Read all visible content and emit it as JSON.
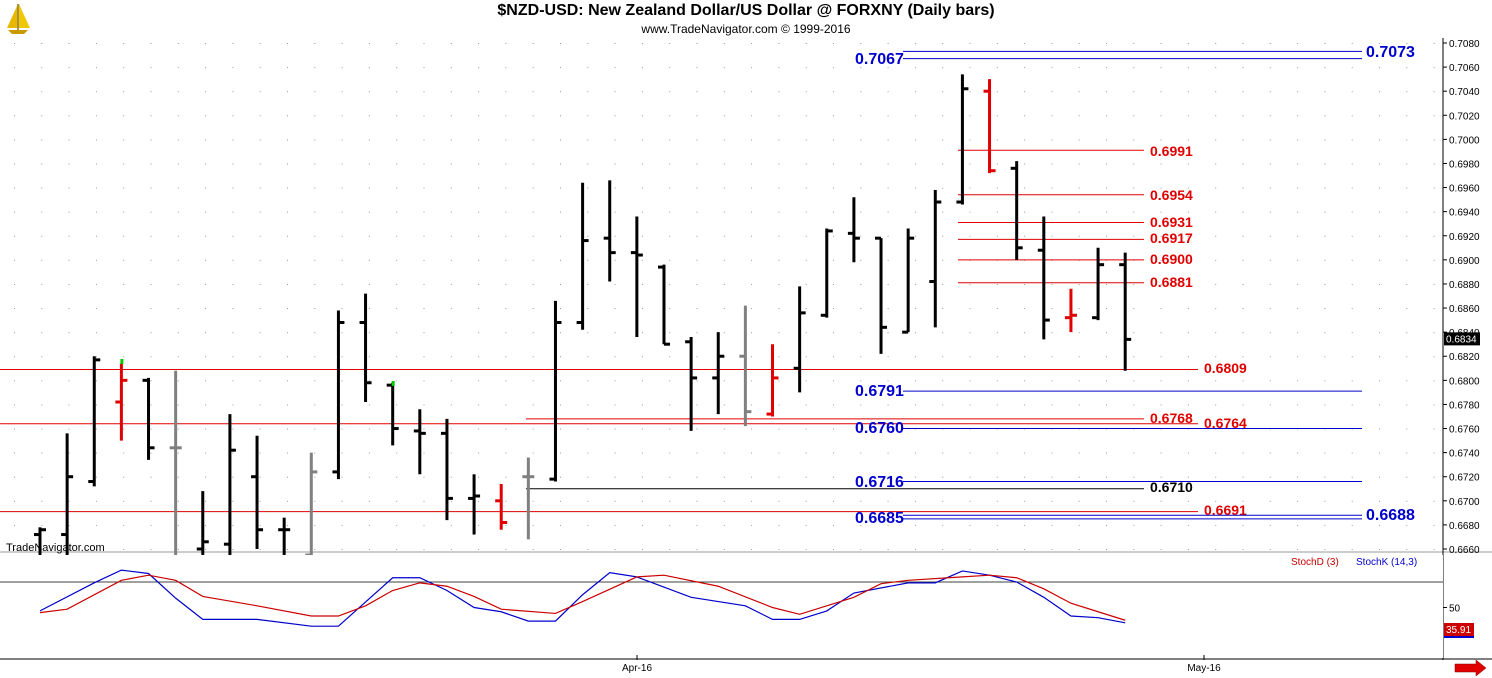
{
  "header": {
    "title": "$NZD-USD:  New Zealand Dollar/US Dollar @ FORXNY  (Daily bars)",
    "copyright": "www.TradeNavigator.com © 1999-2016",
    "watermark": "TradeNavigator.com",
    "logo_icon": "sailboat-logo-icon"
  },
  "colors": {
    "up_bar": "#000000",
    "down_bar": "#e00000",
    "neutral_bar": "#808080",
    "blue_level": "#0000cc",
    "red_level": "#e00000",
    "stochD": "#cc0000",
    "stochK": "#0000cc",
    "current_price_bg": "#000000",
    "stoch_value_bg": "#cc0000"
  },
  "chart_data": [
    {
      "type": "ohlc",
      "title": "$NZD-USD:  New Zealand Dollar/US Dollar @ FORXNY  (Daily bars)",
      "ylim": [
        0.6655,
        0.7085
      ],
      "y_ticks": [
        "0.7080",
        "0.7060",
        "0.7040",
        "0.7020",
        "0.7000",
        "0.6980",
        "0.6960",
        "0.6940",
        "0.6920",
        "0.6900",
        "0.6880",
        "0.6860",
        "0.6840",
        "0.6820",
        "0.6800",
        "0.6780",
        "0.6760",
        "0.6740",
        "0.6720",
        "0.6700",
        "0.6680",
        "0.6660"
      ],
      "x_labels": [
        "Apr-16",
        "May-16"
      ],
      "current_price": "0.6834",
      "grid": "dotted",
      "bars": [
        {
          "o": 0.6672,
          "h": 0.6678,
          "l": 0.6655,
          "c": 0.6676,
          "col": "black"
        },
        {
          "o": 0.6672,
          "h": 0.6756,
          "l": 0.6655,
          "c": 0.672,
          "col": "black"
        },
        {
          "o": 0.6716,
          "h": 0.682,
          "l": 0.6712,
          "c": 0.6817,
          "col": "black"
        },
        {
          "o": 0.6782,
          "h": 0.6814,
          "l": 0.675,
          "c": 0.68,
          "col": "red"
        },
        {
          "o": 0.68,
          "h": 0.6802,
          "l": 0.6734,
          "c": 0.6744,
          "col": "black"
        },
        {
          "o": 0.6744,
          "h": 0.6808,
          "l": 0.6655,
          "c": 0.6744,
          "col": "gray"
        },
        {
          "o": 0.666,
          "h": 0.6708,
          "l": 0.6655,
          "c": 0.6666,
          "col": "black"
        },
        {
          "o": 0.6664,
          "h": 0.6772,
          "l": 0.6655,
          "c": 0.6742,
          "col": "black"
        },
        {
          "o": 0.672,
          "h": 0.6754,
          "l": 0.666,
          "c": 0.6676,
          "col": "black"
        },
        {
          "o": 0.6676,
          "h": 0.6686,
          "l": 0.6655,
          "c": 0.6676,
          "col": "black"
        },
        {
          "o": 0.6655,
          "h": 0.674,
          "l": 0.6655,
          "c": 0.6724,
          "col": "gray"
        },
        {
          "o": 0.6724,
          "h": 0.6858,
          "l": 0.6718,
          "c": 0.6848,
          "col": "black"
        },
        {
          "o": 0.6848,
          "h": 0.6872,
          "l": 0.6782,
          "c": 0.6798,
          "col": "black"
        },
        {
          "o": 0.6796,
          "h": 0.6798,
          "l": 0.6746,
          "c": 0.676,
          "col": "black"
        },
        {
          "o": 0.6758,
          "h": 0.6776,
          "l": 0.6722,
          "c": 0.6756,
          "col": "black"
        },
        {
          "o": 0.6756,
          "h": 0.6768,
          "l": 0.6684,
          "c": 0.6702,
          "col": "black"
        },
        {
          "o": 0.6702,
          "h": 0.6722,
          "l": 0.6672,
          "c": 0.6704,
          "col": "black"
        },
        {
          "o": 0.67,
          "h": 0.6714,
          "l": 0.6676,
          "c": 0.6682,
          "col": "red"
        },
        {
          "o": 0.672,
          "h": 0.6736,
          "l": 0.6668,
          "c": 0.672,
          "col": "gray"
        },
        {
          "o": 0.6718,
          "h": 0.6866,
          "l": 0.6716,
          "c": 0.6848,
          "col": "black"
        },
        {
          "o": 0.6848,
          "h": 0.6964,
          "l": 0.6842,
          "c": 0.6916,
          "col": "black"
        },
        {
          "o": 0.6918,
          "h": 0.6966,
          "l": 0.6882,
          "c": 0.6906,
          "col": "black"
        },
        {
          "o": 0.6906,
          "h": 0.6936,
          "l": 0.6836,
          "c": 0.6904,
          "col": "black"
        },
        {
          "o": 0.6894,
          "h": 0.6896,
          "l": 0.683,
          "c": 0.683,
          "col": "black"
        },
        {
          "o": 0.6832,
          "h": 0.6836,
          "l": 0.6758,
          "c": 0.6802,
          "col": "black"
        },
        {
          "o": 0.6802,
          "h": 0.684,
          "l": 0.6772,
          "c": 0.682,
          "col": "black"
        },
        {
          "o": 0.682,
          "h": 0.6862,
          "l": 0.6762,
          "c": 0.6774,
          "col": "gray"
        },
        {
          "o": 0.6772,
          "h": 0.683,
          "l": 0.677,
          "c": 0.6802,
          "col": "red"
        },
        {
          "o": 0.681,
          "h": 0.6878,
          "l": 0.679,
          "c": 0.6856,
          "col": "black"
        },
        {
          "o": 0.6854,
          "h": 0.6926,
          "l": 0.6852,
          "c": 0.6924,
          "col": "black"
        },
        {
          "o": 0.6922,
          "h": 0.6952,
          "l": 0.6898,
          "c": 0.6918,
          "col": "black"
        },
        {
          "o": 0.6918,
          "h": 0.6918,
          "l": 0.6822,
          "c": 0.6844,
          "col": "black"
        },
        {
          "o": 0.684,
          "h": 0.6926,
          "l": 0.684,
          "c": 0.6918,
          "col": "black"
        },
        {
          "o": 0.6882,
          "h": 0.6958,
          "l": 0.6844,
          "c": 0.6948,
          "col": "black"
        },
        {
          "o": 0.6948,
          "h": 0.7054,
          "l": 0.6946,
          "c": 0.7042,
          "col": "black"
        },
        {
          "o": 0.704,
          "h": 0.705,
          "l": 0.6972,
          "c": 0.6974,
          "col": "red"
        },
        {
          "o": 0.6976,
          "h": 0.6982,
          "l": 0.69,
          "c": 0.691,
          "col": "black"
        },
        {
          "o": 0.6908,
          "h": 0.6936,
          "l": 0.6834,
          "c": 0.685,
          "col": "black"
        },
        {
          "o": 0.6852,
          "h": 0.6876,
          "l": 0.684,
          "c": 0.6854,
          "col": "red"
        },
        {
          "o": 0.6852,
          "h": 0.691,
          "l": 0.685,
          "c": 0.6896,
          "col": "black"
        },
        {
          "o": 0.6896,
          "h": 0.6906,
          "l": 0.6808,
          "c": 0.6834,
          "col": "black"
        }
      ],
      "levels": [
        {
          "value": "0.7073",
          "color": "blue",
          "x1": 903,
          "x2": 1362,
          "lx": 1366,
          "ly": 52,
          "size": 16
        },
        {
          "value": "0.7067",
          "color": "blue",
          "x1": 903,
          "x2": 1362,
          "lx": 855,
          "ly": 59,
          "size": 16,
          "left": true
        },
        {
          "value": "0.6991",
          "color": "red",
          "x1": 958,
          "x2": 1144,
          "lx": 1150,
          "ly": 151,
          "size": 14
        },
        {
          "value": "0.6954",
          "color": "red",
          "x1": 958,
          "x2": 1144,
          "lx": 1150,
          "ly": 195,
          "size": 14
        },
        {
          "value": "0.6931",
          "color": "red",
          "x1": 958,
          "x2": 1144,
          "lx": 1150,
          "ly": 222,
          "size": 14
        },
        {
          "value": "0.6917",
          "color": "red",
          "x1": 958,
          "x2": 1144,
          "lx": 1150,
          "ly": 238,
          "size": 14
        },
        {
          "value": "0.6900",
          "color": "red",
          "x1": 958,
          "x2": 1144,
          "lx": 1150,
          "ly": 259,
          "size": 14
        },
        {
          "value": "0.6881",
          "color": "red",
          "x1": 958,
          "x2": 1144,
          "lx": 1150,
          "ly": 282,
          "size": 14
        },
        {
          "value": "0.6809",
          "color": "red",
          "x1": 0,
          "x2": 1198,
          "lx": 1204,
          "ly": 368,
          "size": 14
        },
        {
          "value": "0.6791",
          "color": "blue",
          "x1": 903,
          "x2": 1362,
          "lx": 855,
          "ly": 391,
          "size": 16,
          "left": true
        },
        {
          "value": "0.6768",
          "color": "red",
          "x1": 526,
          "x2": 1144,
          "lx": 1150,
          "ly": 418,
          "size": 14
        },
        {
          "value": "0.6764",
          "color": "red",
          "x1": 0,
          "x2": 1198,
          "lx": 1204,
          "ly": 423,
          "size": 14
        },
        {
          "value": "0.6760",
          "color": "blue",
          "x1": 903,
          "x2": 1362,
          "lx": 855,
          "ly": 428,
          "size": 16,
          "left": true
        },
        {
          "value": "0.6716",
          "color": "blue",
          "x1": 903,
          "x2": 1362,
          "lx": 855,
          "ly": 482,
          "size": 16,
          "left": true
        },
        {
          "value": "0.6710",
          "color": "black",
          "x1": 526,
          "x2": 1144,
          "lx": 1150,
          "ly": 487,
          "size": 14
        },
        {
          "value": "0.6691",
          "color": "red",
          "x1": 0,
          "x2": 1198,
          "lx": 1204,
          "ly": 510,
          "size": 14
        },
        {
          "value": "0.6688",
          "color": "blue",
          "x1": 903,
          "x2": 1362,
          "lx": 1366,
          "ly": 515,
          "size": 16
        },
        {
          "value": "0.6685",
          "color": "blue",
          "x1": 903,
          "x2": 1362,
          "lx": 855,
          "ly": 518,
          "size": 16,
          "left": true
        }
      ]
    },
    {
      "type": "line",
      "ylim": [
        0,
        100
      ],
      "y_ticks": [
        "50"
      ],
      "reference_line": 80,
      "legend": [
        "StochD (3)",
        "StochK (14,3)"
      ],
      "current_value": "35.91",
      "series": [
        {
          "name": "StochK (14,3)",
          "color": "blue",
          "values": [
            [
              0,
              46
            ],
            [
              2,
              79
            ],
            [
              3,
              94
            ],
            [
              4,
              90
            ],
            [
              5,
              61
            ],
            [
              6,
              36
            ],
            [
              8,
              36
            ],
            [
              10,
              28
            ],
            [
              11,
              28
            ],
            [
              13,
              85
            ],
            [
              14,
              85
            ],
            [
              15,
              70
            ],
            [
              16,
              50
            ],
            [
              17,
              45
            ],
            [
              18,
              34
            ],
            [
              19,
              34
            ],
            [
              20,
              65
            ],
            [
              21,
              91
            ],
            [
              22,
              86
            ],
            [
              24,
              62
            ],
            [
              26,
              52
            ],
            [
              27,
              36
            ],
            [
              28,
              36
            ],
            [
              29,
              46
            ],
            [
              30,
              67
            ],
            [
              32,
              79
            ],
            [
              33,
              79
            ],
            [
              34,
              93
            ],
            [
              35,
              88
            ],
            [
              36,
              80
            ],
            [
              37,
              62
            ],
            [
              38,
              40
            ],
            [
              39,
              38
            ],
            [
              40,
              32
            ]
          ]
        },
        {
          "name": "StochD (3)",
          "color": "red",
          "values": [
            [
              0,
              44
            ],
            [
              1,
              48
            ],
            [
              3,
              82
            ],
            [
              4,
              88
            ],
            [
              5,
              82
            ],
            [
              6,
              63
            ],
            [
              8,
              52
            ],
            [
              10,
              40
            ],
            [
              11,
              40
            ],
            [
              12,
              52
            ],
            [
              13,
              70
            ],
            [
              14,
              79
            ],
            [
              15,
              75
            ],
            [
              16,
              63
            ],
            [
              17,
              48
            ],
            [
              19,
              43
            ],
            [
              20,
              57
            ],
            [
              22,
              86
            ],
            [
              23,
              88
            ],
            [
              25,
              75
            ],
            [
              27,
              50
            ],
            [
              28,
              42
            ],
            [
              30,
              62
            ],
            [
              31,
              78
            ],
            [
              32,
              82
            ],
            [
              34,
              86
            ],
            [
              35,
              88
            ],
            [
              36,
              85
            ],
            [
              37,
              72
            ],
            [
              38,
              55
            ],
            [
              39,
              45
            ],
            [
              40,
              35
            ]
          ]
        }
      ]
    }
  ]
}
